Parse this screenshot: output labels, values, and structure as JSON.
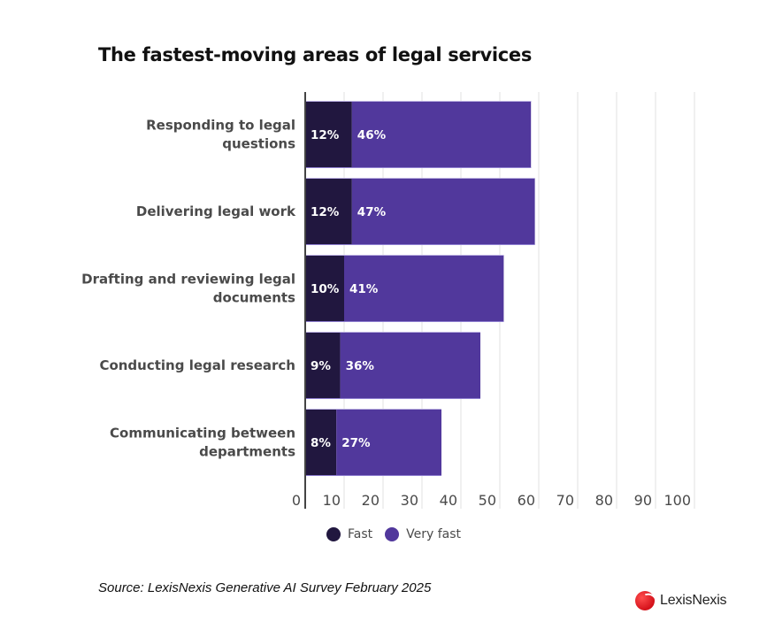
{
  "chart_data": {
    "type": "bar",
    "orientation": "horizontal",
    "stacked": true,
    "title": "The fastest-moving areas of legal services",
    "xlabel": "",
    "ylabel": "",
    "xlim": [
      0,
      100
    ],
    "xticks": [
      0,
      10,
      20,
      30,
      40,
      50,
      60,
      70,
      80,
      90,
      100
    ],
    "grid": true,
    "categories": [
      [
        "Responding to legal",
        "questions"
      ],
      [
        "Delivering legal work"
      ],
      [
        "Drafting and reviewing legal",
        "documents"
      ],
      [
        "Conducting legal research"
      ],
      [
        "Communicating between",
        "departments"
      ]
    ],
    "series": [
      {
        "name": "Fast",
        "color": "#21173f",
        "values": [
          12,
          12,
          10,
          9,
          8
        ],
        "labels": [
          "12%",
          "12%",
          "10%",
          "9%",
          "8%"
        ]
      },
      {
        "name": "Very fast",
        "color": "#51389c",
        "values": [
          46,
          47,
          41,
          36,
          27
        ],
        "labels": [
          "46%",
          "47%",
          "41%",
          "36%",
          "27%"
        ]
      }
    ],
    "legend_position": "bottom-center"
  },
  "legend": [
    {
      "label": "Fast",
      "color": "#21173f"
    },
    {
      "label": "Very fast",
      "color": "#51389c"
    }
  ],
  "source": "Source: LexisNexis Generative AI Survey February 2025",
  "brand": {
    "name": "LexisNexis",
    "color": "#e0161f"
  }
}
